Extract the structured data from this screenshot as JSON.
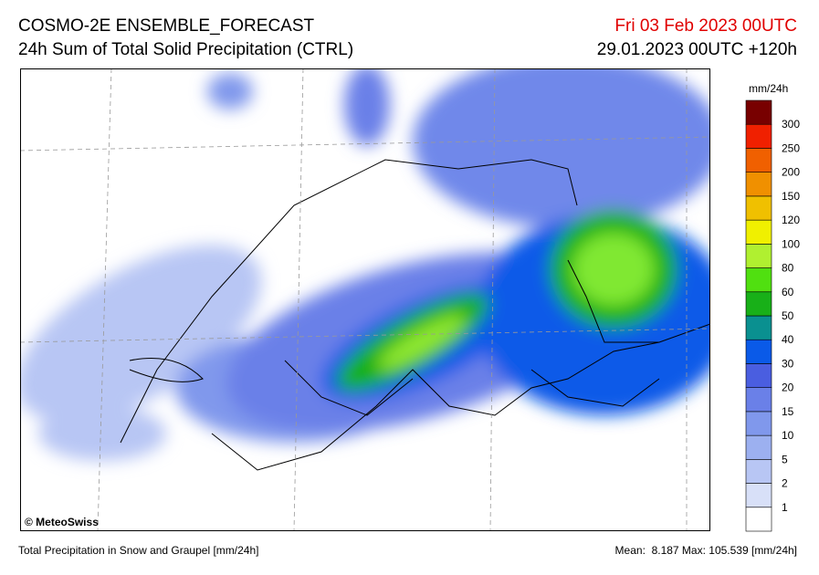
{
  "header": {
    "title": "COSMO-2E ENSEMBLE_FORECAST",
    "subtitle": "24h Sum of Total Solid Precipitation (CTRL)",
    "valid_time": "Fri 03 Feb 2023 00UTC",
    "run_time": "29.01.2023 00UTC +120h"
  },
  "legend": {
    "unit": "mm/24h",
    "levels": [
      1,
      2,
      5,
      10,
      15,
      20,
      30,
      40,
      50,
      60,
      80,
      100,
      120,
      150,
      200,
      250,
      300
    ],
    "colors": [
      "#ffffff",
      "#d8e0f8",
      "#b8c6f4",
      "#9cb0f0",
      "#8098ec",
      "#6a80e8",
      "#4a5ee0",
      "#0a5ae8",
      "#0a9090",
      "#18b018",
      "#50e010",
      "#b0f030",
      "#f0f000",
      "#f0c000",
      "#f09000",
      "#f06000",
      "#f02000",
      "#780000"
    ]
  },
  "credit": "© MeteoSwiss",
  "footer": {
    "description": "Total Precipitation in Snow and Graupel [mm/24h]",
    "stats": "Mean:  8.187 Max: 105.539 [mm/24h]"
  }
}
